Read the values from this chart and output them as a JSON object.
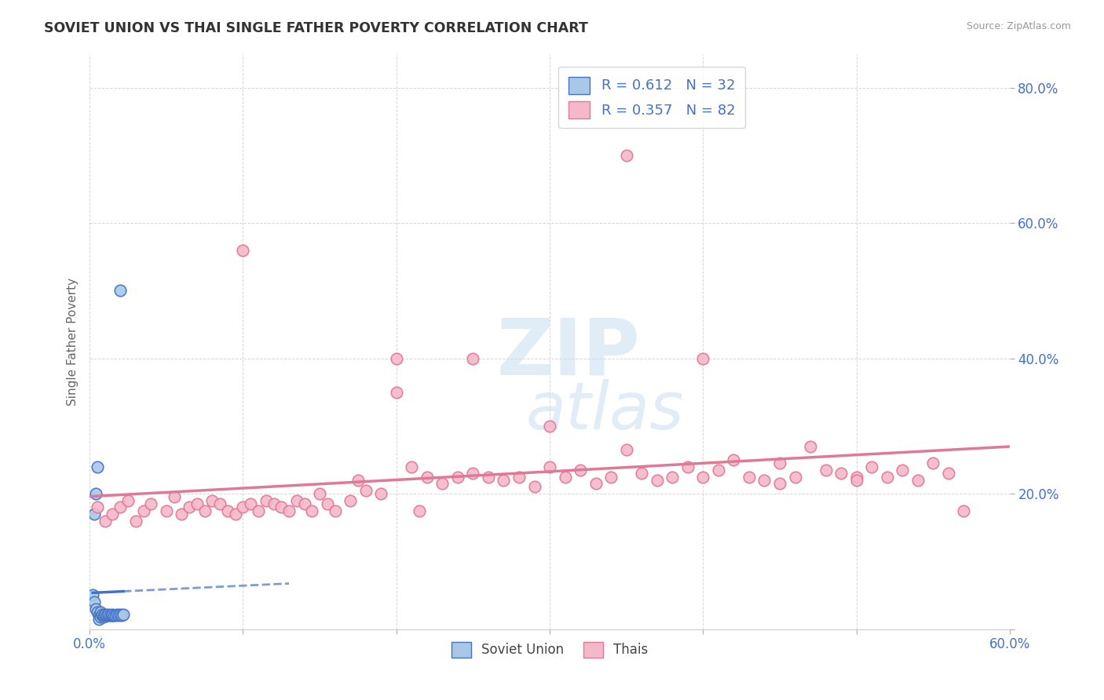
{
  "title": "SOVIET UNION VS THAI SINGLE FATHER POVERTY CORRELATION CHART",
  "source": "Source: ZipAtlas.com",
  "ylabel": "Single Father Poverty",
  "xmin": 0.0,
  "xmax": 0.6,
  "ymin": 0.0,
  "ymax": 0.85,
  "x_ticks": [
    0.0,
    0.1,
    0.2,
    0.3,
    0.4,
    0.5,
    0.6
  ],
  "x_tick_labels": [
    "0.0%",
    "",
    "",
    "",
    "",
    "",
    "60.0%"
  ],
  "y_ticks": [
    0.0,
    0.2,
    0.4,
    0.6,
    0.8
  ],
  "y_tick_labels_right": [
    "",
    "20.0%",
    "40.0%",
    "60.0%",
    "80.0%"
  ],
  "soviet_color": "#a8c8e8",
  "thai_color": "#f5b8c8",
  "soviet_edge_color": "#4472c4",
  "thai_edge_color": "#e07898",
  "trendline_soviet_color": "#4472c4",
  "trendline_thai_color": "#e07898",
  "legend_r_soviet": "0.612",
  "legend_n_soviet": "32",
  "legend_r_thai": "0.357",
  "legend_n_thai": "82",
  "soviet_x": [
    0.002,
    0.003,
    0.004,
    0.005,
    0.006,
    0.006,
    0.007,
    0.007,
    0.008,
    0.008,
    0.009,
    0.009,
    0.01,
    0.01,
    0.011,
    0.012,
    0.012,
    0.013,
    0.014,
    0.015,
    0.015,
    0.016,
    0.017,
    0.018,
    0.019,
    0.02,
    0.021,
    0.022,
    0.003,
    0.004,
    0.005,
    0.02
  ],
  "soviet_y": [
    0.05,
    0.04,
    0.03,
    0.025,
    0.02,
    0.015,
    0.025,
    0.018,
    0.02,
    0.022,
    0.018,
    0.02,
    0.02,
    0.022,
    0.02,
    0.02,
    0.022,
    0.02,
    0.02,
    0.02,
    0.022,
    0.02,
    0.02,
    0.022,
    0.02,
    0.022,
    0.02,
    0.022,
    0.17,
    0.2,
    0.24,
    0.5
  ],
  "thai_x": [
    0.005,
    0.01,
    0.015,
    0.02,
    0.025,
    0.03,
    0.035,
    0.04,
    0.05,
    0.055,
    0.06,
    0.065,
    0.07,
    0.075,
    0.08,
    0.085,
    0.09,
    0.095,
    0.1,
    0.105,
    0.11,
    0.115,
    0.12,
    0.125,
    0.13,
    0.135,
    0.14,
    0.145,
    0.15,
    0.155,
    0.16,
    0.17,
    0.175,
    0.18,
    0.19,
    0.2,
    0.21,
    0.215,
    0.22,
    0.23,
    0.24,
    0.25,
    0.26,
    0.27,
    0.28,
    0.29,
    0.3,
    0.31,
    0.32,
    0.33,
    0.34,
    0.35,
    0.36,
    0.37,
    0.38,
    0.39,
    0.4,
    0.41,
    0.42,
    0.43,
    0.44,
    0.45,
    0.46,
    0.47,
    0.48,
    0.49,
    0.5,
    0.51,
    0.52,
    0.53,
    0.54,
    0.55,
    0.56,
    0.57,
    0.1,
    0.2,
    0.3,
    0.4,
    0.5,
    0.25,
    0.35,
    0.45
  ],
  "thai_y": [
    0.18,
    0.16,
    0.17,
    0.18,
    0.19,
    0.16,
    0.175,
    0.185,
    0.175,
    0.195,
    0.17,
    0.18,
    0.185,
    0.175,
    0.19,
    0.185,
    0.175,
    0.17,
    0.18,
    0.185,
    0.175,
    0.19,
    0.185,
    0.18,
    0.175,
    0.19,
    0.185,
    0.175,
    0.2,
    0.185,
    0.175,
    0.19,
    0.22,
    0.205,
    0.2,
    0.35,
    0.24,
    0.175,
    0.225,
    0.215,
    0.225,
    0.23,
    0.225,
    0.22,
    0.225,
    0.21,
    0.24,
    0.225,
    0.235,
    0.215,
    0.225,
    0.265,
    0.23,
    0.22,
    0.225,
    0.24,
    0.225,
    0.235,
    0.25,
    0.225,
    0.22,
    0.245,
    0.225,
    0.27,
    0.235,
    0.23,
    0.225,
    0.24,
    0.225,
    0.235,
    0.22,
    0.245,
    0.23,
    0.175,
    0.56,
    0.4,
    0.3,
    0.4,
    0.22,
    0.4,
    0.7,
    0.215
  ]
}
